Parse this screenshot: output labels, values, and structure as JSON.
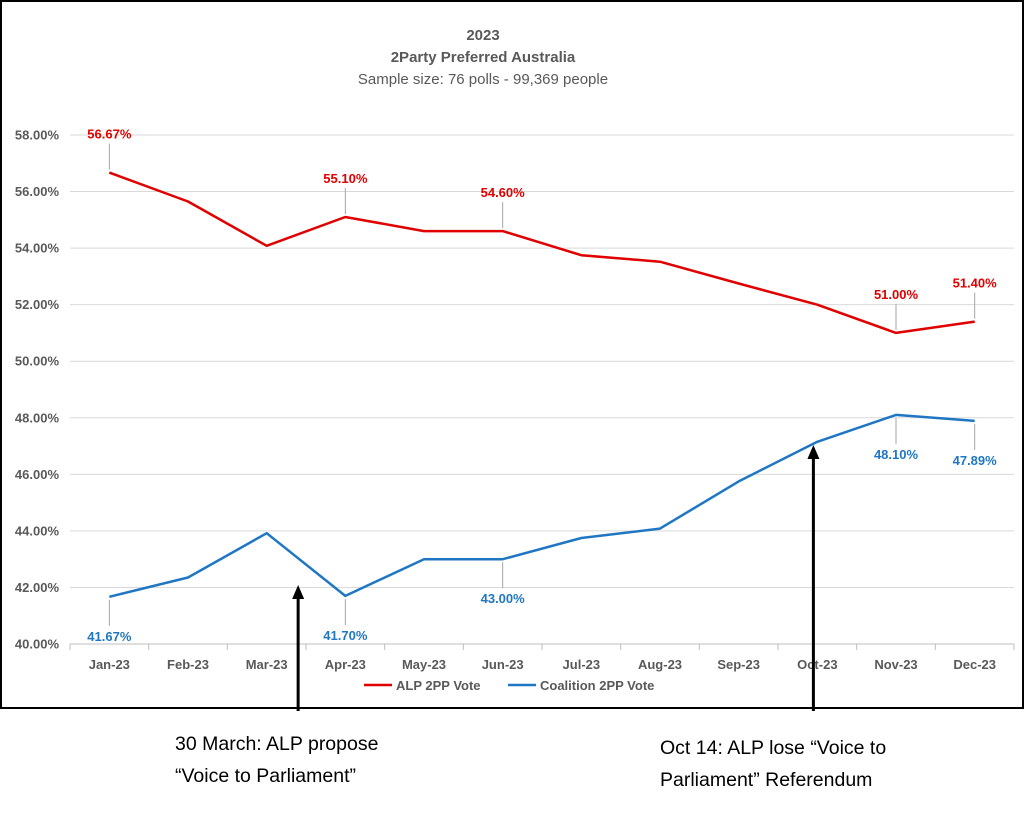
{
  "chart_data": {
    "type": "line",
    "title": "2023",
    "subtitle": "2Party Preferred Australia",
    "sample_note": "Sample size: 76 polls - 99,369 people",
    "categories": [
      "Jan-23",
      "Feb-23",
      "Mar-23",
      "Apr-23",
      "May-23",
      "Jun-23",
      "Jul-23",
      "Aug-23",
      "Sep-23",
      "Oct-23",
      "Nov-23",
      "Dec-23"
    ],
    "ylim": [
      40,
      58
    ],
    "yticks": [
      "40.00%",
      "42.00%",
      "44.00%",
      "46.00%",
      "48.00%",
      "50.00%",
      "52.00%",
      "54.00%",
      "56.00%",
      "58.00%"
    ],
    "grid": "horizontal",
    "legend_position": "bottom",
    "series": [
      {
        "name": "ALP 2PP Vote",
        "color": "#e00000",
        "values": [
          56.67,
          55.65,
          54.08,
          55.1,
          54.6,
          54.6,
          53.75,
          53.52,
          52.75,
          52.0,
          51.0,
          51.4
        ],
        "labels": [
          {
            "index": 0,
            "text": "56.67%",
            "pos": "above"
          },
          {
            "index": 3,
            "text": "55.10%",
            "pos": "above"
          },
          {
            "index": 5,
            "text": "54.60%",
            "pos": "above"
          },
          {
            "index": 10,
            "text": "51.00%",
            "pos": "above"
          },
          {
            "index": 11,
            "text": "51.40%",
            "pos": "above"
          }
        ]
      },
      {
        "name": "Coalition 2PP Vote",
        "color": "#1f77c4",
        "values": [
          41.67,
          42.35,
          43.92,
          41.7,
          43.0,
          43.0,
          43.75,
          44.08,
          45.75,
          47.15,
          48.1,
          47.89
        ],
        "labels": [
          {
            "index": 0,
            "text": "41.67%",
            "pos": "below"
          },
          {
            "index": 3,
            "text": "41.70%",
            "pos": "below"
          },
          {
            "index": 5,
            "text": "43.00%",
            "pos": "below"
          },
          {
            "index": 10,
            "text": "48.10%",
            "pos": "below"
          },
          {
            "index": 11,
            "text": "47.89%",
            "pos": "below"
          }
        ]
      }
    ]
  },
  "annotations": [
    {
      "lines": [
        "30 March: ALP propose",
        "“Voice to Parliament”"
      ],
      "month_position": 2.9
    },
    {
      "lines": [
        "Oct 14: ALP lose “Voice to",
        "Parliament” Referendum"
      ],
      "month_position": 9.45
    }
  ]
}
